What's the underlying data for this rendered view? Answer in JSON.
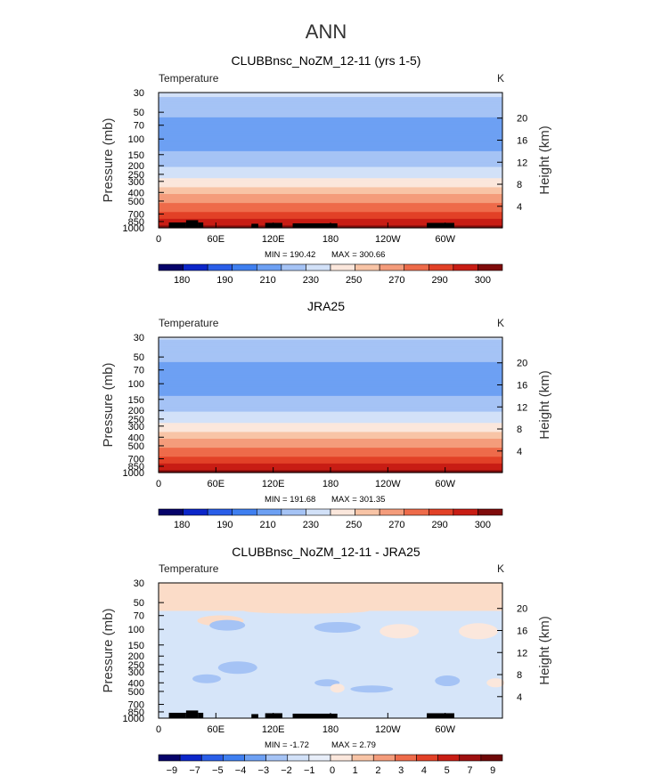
{
  "figure": {
    "season": "ANN"
  },
  "chart_data": [
    {
      "type": "heatmap",
      "title": "CLUBBnsc_NoZM_12-11 (yrs 1-5)",
      "variable": "Temperature",
      "units": "K",
      "xlabel": "",
      "ylabel": "Pressure (mb)",
      "ylabel_right": "Height (km)",
      "x_ticks": [
        "0",
        "60E",
        "120E",
        "180",
        "120W",
        "60W"
      ],
      "y_ticks": [
        30,
        50,
        70,
        100,
        150,
        200,
        250,
        300,
        400,
        500,
        700,
        850,
        1000
      ],
      "y_right_ticks": [
        4,
        8,
        12,
        16,
        20
      ],
      "ylim": [
        1000,
        30
      ],
      "y_scale": "log",
      "stats": {
        "min_label": "MIN =",
        "min": "190.42",
        "max_label": "MAX =",
        "max": "300.66"
      },
      "colorbar": {
        "labels": [
          "180",
          "190",
          "210",
          "230",
          "250",
          "270",
          "290",
          "300"
        ],
        "colors": [
          "#06036a",
          "#0c26c9",
          "#2a5ee8",
          "#3f7ff0",
          "#6da0f3",
          "#a5c3f5",
          "#d2e1f8",
          "#fbe7dc",
          "#f8c4a6",
          "#f49c7b",
          "#ee6b4a",
          "#e24127",
          "#c81d14",
          "#7f0b0b"
        ]
      },
      "profile": [
        {
          "p": 30,
          "v": 222
        },
        {
          "p": 50,
          "v": 212
        },
        {
          "p": 70,
          "v": 207
        },
        {
          "p": 100,
          "v": 205
        },
        {
          "p": 150,
          "v": 211
        },
        {
          "p": 200,
          "v": 218
        },
        {
          "p": 250,
          "v": 226
        },
        {
          "p": 300,
          "v": 234
        },
        {
          "p": 400,
          "v": 248
        },
        {
          "p": 500,
          "v": 258
        },
        {
          "p": 700,
          "v": 273
        },
        {
          "p": 850,
          "v": 282
        },
        {
          "p": 1000,
          "v": 292
        }
      ]
    },
    {
      "type": "heatmap",
      "title": "JRA25",
      "variable": "Temperature",
      "units": "K",
      "xlabel": "",
      "ylabel": "Pressure (mb)",
      "ylabel_right": "Height (km)",
      "x_ticks": [
        "0",
        "60E",
        "120E",
        "180",
        "120W",
        "60W"
      ],
      "y_ticks": [
        30,
        50,
        70,
        100,
        150,
        200,
        250,
        300,
        400,
        500,
        700,
        850,
        1000
      ],
      "y_right_ticks": [
        4,
        8,
        12,
        16,
        20
      ],
      "ylim": [
        1000,
        30
      ],
      "y_scale": "log",
      "stats": {
        "min_label": "MIN =",
        "min": "191.68",
        "max_label": "MAX =",
        "max": "301.35"
      },
      "colorbar": {
        "labels": [
          "180",
          "190",
          "210",
          "230",
          "250",
          "270",
          "290",
          "300"
        ],
        "colors": [
          "#06036a",
          "#0c26c9",
          "#2a5ee8",
          "#3f7ff0",
          "#6da0f3",
          "#a5c3f5",
          "#d2e1f8",
          "#fbe7dc",
          "#f8c4a6",
          "#f49c7b",
          "#ee6b4a",
          "#e24127",
          "#c81d14",
          "#7f0b0b"
        ]
      },
      "profile": [
        {
          "p": 30,
          "v": 221
        },
        {
          "p": 50,
          "v": 212
        },
        {
          "p": 70,
          "v": 206
        },
        {
          "p": 100,
          "v": 205
        },
        {
          "p": 150,
          "v": 211
        },
        {
          "p": 200,
          "v": 218
        },
        {
          "p": 250,
          "v": 226
        },
        {
          "p": 300,
          "v": 234
        },
        {
          "p": 400,
          "v": 248
        },
        {
          "p": 500,
          "v": 258
        },
        {
          "p": 700,
          "v": 273
        },
        {
          "p": 850,
          "v": 283
        },
        {
          "p": 1000,
          "v": 293
        }
      ]
    },
    {
      "type": "heatmap",
      "title": "CLUBBnsc_NoZM_12-11 - JRA25",
      "variable": "Temperature",
      "units": "K",
      "xlabel": "",
      "ylabel": "Pressure (mb)",
      "ylabel_right": "Height (km)",
      "x_ticks": [
        "0",
        "60E",
        "120E",
        "180",
        "120W",
        "60W"
      ],
      "y_ticks": [
        30,
        50,
        70,
        100,
        150,
        200,
        250,
        300,
        400,
        500,
        700,
        850,
        1000
      ],
      "y_right_ticks": [
        4,
        8,
        12,
        16,
        20
      ],
      "ylim": [
        1000,
        30
      ],
      "y_scale": "log",
      "stats": {
        "min_label": "MIN =",
        "min": "-1.72",
        "max_label": "MAX =",
        "max": "2.79"
      },
      "colorbar": {
        "labels": [
          "−9",
          "−7",
          "−5",
          "−4",
          "−3",
          "−2",
          "−1",
          "0",
          "1",
          "2",
          "3",
          "4",
          "5",
          "7",
          "9"
        ],
        "colors": [
          "#06036a",
          "#0c26c9",
          "#2a5ee8",
          "#3f7ff0",
          "#6da0f3",
          "#a5c3f5",
          "#d2e1f8",
          "#e8eef9",
          "#fbe7dc",
          "#f8c4a6",
          "#f49c7b",
          "#ee6b4a",
          "#e24127",
          "#c81d14",
          "#9e1010",
          "#6e0808"
        ]
      },
      "regions": [
        {
          "level": "upper",
          "p_top": 30,
          "p_bottom": 62,
          "value": "1 to 2"
        },
        {
          "level": "lower",
          "p_top": 62,
          "p_bottom": 1000,
          "value": "-1 to 0"
        }
      ]
    }
  ]
}
